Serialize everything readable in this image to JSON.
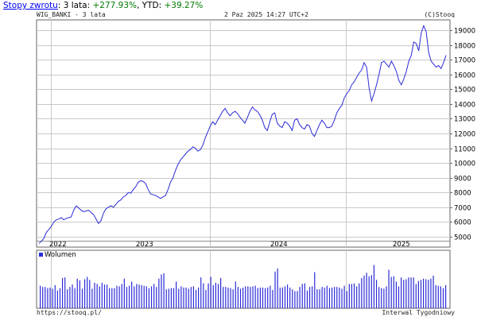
{
  "header": {
    "returns_link": "Stopy zwrotu",
    "period_label": ": 3 lata: ",
    "period_value": "+277.93%",
    "ytd_label": ", YTD: ",
    "ytd_value": "+39.27%",
    "chart_title": "WIG_BANKI - 3 lata",
    "timestamp": "2 Paz 2025 14:27 UTC+2",
    "copyright": "(C)Stooq"
  },
  "footer": {
    "site": "https://stooq.pl/",
    "interval": "Interwal Tygodniowy"
  },
  "colors": {
    "price_line": "#2b2bd8",
    "volume_bar": "#2b2bd8",
    "grid": "#c8c8c8",
    "text_positive": "#007a00",
    "link": "#0000ee"
  },
  "chart_data": [
    {
      "type": "line",
      "title": "WIG_BANKI - 3 lata",
      "x_axis": {
        "labels": [
          "2022",
          "2023",
          "2024",
          "2025"
        ]
      },
      "y_axis": {
        "ticks": [
          5000,
          6000,
          7000,
          8000,
          9000,
          10000,
          11000,
          12000,
          13000,
          14000,
          15000,
          16000,
          17000,
          18000,
          19000
        ],
        "side": "right"
      },
      "ylim": [
        4300,
        19700
      ],
      "grid": true,
      "series": [
        {
          "values": [
            4550,
            4700,
            4900,
            5300,
            5500,
            5700,
            6000,
            6150,
            6200,
            6300,
            6150,
            6250,
            6300,
            6350,
            6800,
            7100,
            6950,
            6800,
            6700,
            6750,
            6800,
            6650,
            6500,
            6200,
            5900,
            6100,
            6600,
            6900,
            7000,
            7100,
            7000,
            7200,
            7400,
            7500,
            7700,
            7800,
            8000,
            7950,
            8200,
            8400,
            8700,
            8800,
            8750,
            8600,
            8200,
            7900,
            7850,
            7800,
            7700,
            7600,
            7700,
            7800,
            8200,
            8700,
            9000,
            9500,
            9900,
            10200,
            10400,
            10600,
            10800,
            10900,
            11100,
            11000,
            10800,
            10900,
            11200,
            11700,
            12100,
            12500,
            12800,
            12600,
            12900,
            13200,
            13500,
            13700,
            13400,
            13200,
            13400,
            13500,
            13350,
            13100,
            12900,
            12700,
            13100,
            13500,
            13800,
            13600,
            13500,
            13250,
            12900,
            12400,
            12200,
            12800,
            13300,
            13400,
            12700,
            12500,
            12400,
            12800,
            12700,
            12500,
            12200,
            12900,
            13000,
            12600,
            12400,
            12300,
            12600,
            12500,
            12000,
            11800,
            12200,
            12600,
            12900,
            12700,
            12400,
            12400,
            12500,
            12900,
            13400,
            13700,
            13900,
            14400,
            14700,
            14900,
            15300,
            15500,
            15800,
            16100,
            16300,
            16800,
            16500,
            15100,
            14200,
            14700,
            15300,
            16000,
            16800,
            16900,
            16700,
            16500,
            16900,
            16600,
            16200,
            15600,
            15300,
            15700,
            16200,
            16900,
            17300,
            18200,
            18100,
            17600,
            18800,
            19300,
            18900,
            17500,
            16900,
            16700,
            16500,
            16600,
            16400,
            16800,
            17300
          ]
        }
      ]
    },
    {
      "type": "bar",
      "legend": [
        "Wolumen"
      ],
      "values": [
        38,
        36,
        36,
        34,
        35,
        33,
        39,
        30,
        34,
        51,
        52,
        32,
        36,
        40,
        34,
        50,
        47,
        33,
        49,
        53,
        48,
        33,
        43,
        41,
        37,
        43,
        40,
        40,
        34,
        34,
        34,
        38,
        37,
        41,
        50,
        36,
        38,
        45,
        37,
        41,
        40,
        39,
        38,
        37,
        34,
        37,
        41,
        36,
        50,
        57,
        59,
        32,
        33,
        34,
        34,
        45,
        33,
        37,
        35,
        35,
        33,
        36,
        37,
        31,
        35,
        52,
        42,
        31,
        42,
        53,
        39,
        43,
        41,
        51,
        36,
        36,
        35,
        34,
        32,
        45,
        36,
        33,
        35,
        37,
        37,
        36,
        37,
        38,
        34,
        35,
        35,
        34,
        35,
        38,
        31,
        62,
        67,
        35,
        35,
        37,
        40,
        35,
        32,
        29,
        29,
        36,
        41,
        42,
        30,
        36,
        37,
        61,
        32,
        32,
        36,
        35,
        38,
        34,
        35,
        36,
        36,
        35,
        33,
        38,
        29,
        41,
        41,
        42,
        37,
        42,
        51,
        55,
        60,
        54,
        56,
        73,
        48,
        36,
        34,
        33,
        37,
        65,
        53,
        54,
        45,
        37,
        52,
        48,
        49,
        52,
        52,
        52,
        41,
        46,
        48,
        50,
        49,
        48,
        50,
        55,
        39,
        38,
        37,
        34,
        39
      ]
    }
  ]
}
